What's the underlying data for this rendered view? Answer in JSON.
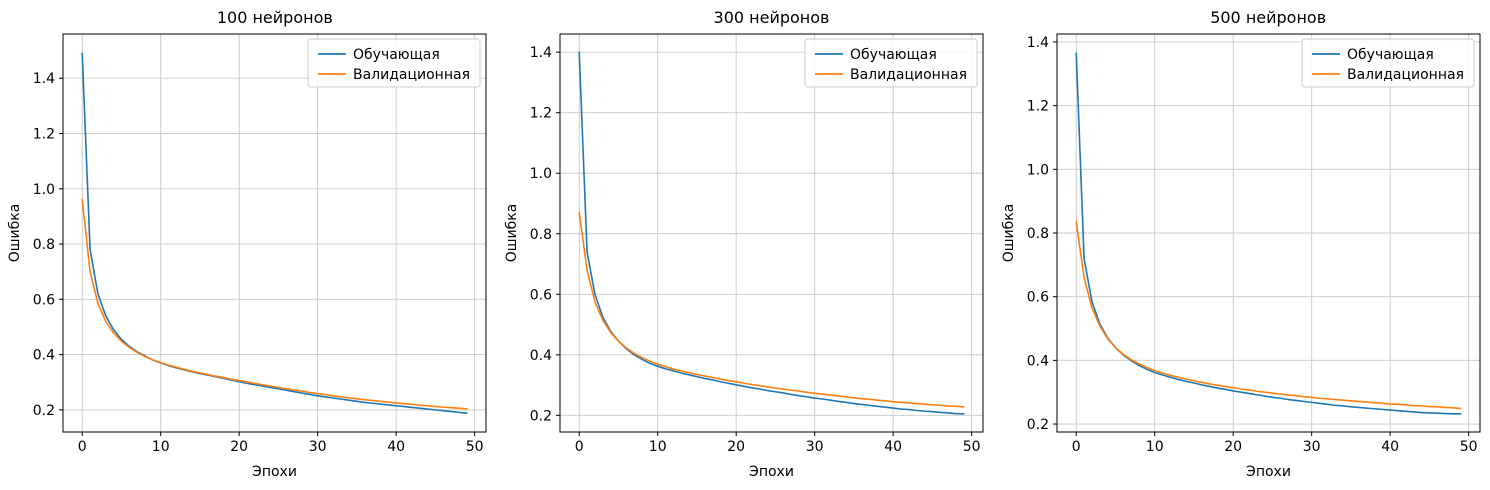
{
  "figure": {
    "background": "#ffffff",
    "grid_color": "#c9c9c9",
    "spine_color": "#000000",
    "legend_border_color": "#cccccc"
  },
  "chart_data": [
    {
      "type": "line",
      "title": "100 нейронов",
      "xlabel": "Эпохи",
      "ylabel": "Ошибка",
      "grid": true,
      "legend_loc": "upper right",
      "xlim": [
        -2.45,
        51.45
      ],
      "ylim": [
        0.12,
        1.56
      ],
      "xticks": [
        0,
        10,
        20,
        30,
        40,
        50
      ],
      "yticks": [
        0.2,
        0.4,
        0.6,
        0.8,
        1.0,
        1.2,
        1.4
      ],
      "x": [
        0,
        1,
        2,
        3,
        4,
        5,
        6,
        7,
        8,
        9,
        10,
        11,
        12,
        13,
        14,
        15,
        16,
        17,
        18,
        19,
        20,
        21,
        22,
        23,
        24,
        25,
        26,
        27,
        28,
        29,
        30,
        31,
        32,
        33,
        34,
        35,
        36,
        37,
        38,
        39,
        40,
        41,
        42,
        43,
        44,
        45,
        46,
        47,
        48,
        49
      ],
      "series": [
        {
          "name": "Обучающая",
          "color": "#1f77b4",
          "values": [
            1.49,
            0.78,
            0.62,
            0.54,
            0.49,
            0.455,
            0.43,
            0.41,
            0.395,
            0.38,
            0.37,
            0.36,
            0.352,
            0.345,
            0.338,
            0.332,
            0.326,
            0.32,
            0.314,
            0.308,
            0.302,
            0.296,
            0.291,
            0.286,
            0.281,
            0.276,
            0.271,
            0.266,
            0.261,
            0.256,
            0.251,
            0.247,
            0.243,
            0.239,
            0.235,
            0.231,
            0.227,
            0.224,
            0.221,
            0.218,
            0.215,
            0.212,
            0.209,
            0.206,
            0.203,
            0.2,
            0.197,
            0.194,
            0.191,
            0.188
          ]
        },
        {
          "name": "Валидационная",
          "color": "#ff7f0e",
          "values": [
            0.96,
            0.7,
            0.585,
            0.52,
            0.478,
            0.448,
            0.426,
            0.408,
            0.393,
            0.381,
            0.371,
            0.362,
            0.354,
            0.347,
            0.34,
            0.334,
            0.328,
            0.322,
            0.317,
            0.311,
            0.306,
            0.301,
            0.296,
            0.291,
            0.286,
            0.281,
            0.277,
            0.272,
            0.268,
            0.263,
            0.259,
            0.255,
            0.251,
            0.247,
            0.244,
            0.24,
            0.237,
            0.234,
            0.231,
            0.228,
            0.225,
            0.222,
            0.22,
            0.217,
            0.215,
            0.212,
            0.21,
            0.208,
            0.206,
            0.204
          ]
        }
      ]
    },
    {
      "type": "line",
      "title": "300 нейронов",
      "xlabel": "Эпохи",
      "ylabel": "Ошибка",
      "grid": true,
      "legend_loc": "upper right",
      "xlim": [
        -2.45,
        51.45
      ],
      "ylim": [
        0.145,
        1.46
      ],
      "xticks": [
        0,
        10,
        20,
        30,
        40,
        50
      ],
      "yticks": [
        0.2,
        0.4,
        0.6,
        0.8,
        1.0,
        1.2,
        1.4
      ],
      "x": [
        0,
        1,
        2,
        3,
        4,
        5,
        6,
        7,
        8,
        9,
        10,
        11,
        12,
        13,
        14,
        15,
        16,
        17,
        18,
        19,
        20,
        21,
        22,
        23,
        24,
        25,
        26,
        27,
        28,
        29,
        30,
        31,
        32,
        33,
        34,
        35,
        36,
        37,
        38,
        39,
        40,
        41,
        42,
        43,
        44,
        45,
        46,
        47,
        48,
        49
      ],
      "series": [
        {
          "name": "Обучающая",
          "color": "#1f77b4",
          "values": [
            1.4,
            0.74,
            0.6,
            0.525,
            0.478,
            0.445,
            0.42,
            0.4,
            0.385,
            0.372,
            0.362,
            0.354,
            0.347,
            0.34,
            0.334,
            0.328,
            0.322,
            0.317,
            0.311,
            0.306,
            0.301,
            0.296,
            0.291,
            0.287,
            0.282,
            0.278,
            0.274,
            0.269,
            0.265,
            0.261,
            0.257,
            0.254,
            0.25,
            0.246,
            0.243,
            0.239,
            0.236,
            0.233,
            0.23,
            0.227,
            0.224,
            0.221,
            0.219,
            0.216,
            0.214,
            0.212,
            0.21,
            0.208,
            0.206,
            0.205
          ]
        },
        {
          "name": "Валидационная",
          "color": "#ff7f0e",
          "values": [
            0.87,
            0.68,
            0.575,
            0.515,
            0.474,
            0.445,
            0.423,
            0.405,
            0.391,
            0.379,
            0.369,
            0.361,
            0.353,
            0.347,
            0.341,
            0.335,
            0.33,
            0.325,
            0.32,
            0.315,
            0.311,
            0.306,
            0.302,
            0.298,
            0.294,
            0.29,
            0.287,
            0.283,
            0.28,
            0.276,
            0.273,
            0.27,
            0.267,
            0.264,
            0.261,
            0.258,
            0.255,
            0.253,
            0.25,
            0.248,
            0.245,
            0.243,
            0.241,
            0.239,
            0.237,
            0.235,
            0.233,
            0.231,
            0.23,
            0.228
          ]
        }
      ]
    },
    {
      "type": "line",
      "title": "500 нейронов",
      "xlabel": "Эпохи",
      "ylabel": "Ошибка",
      "grid": true,
      "legend_loc": "upper right",
      "xlim": [
        -2.45,
        51.45
      ],
      "ylim": [
        0.175,
        1.425
      ],
      "xticks": [
        0,
        10,
        20,
        30,
        40,
        50
      ],
      "yticks": [
        0.2,
        0.4,
        0.6,
        0.8,
        1.0,
        1.2,
        1.4
      ],
      "x": [
        0,
        1,
        2,
        3,
        4,
        5,
        6,
        7,
        8,
        9,
        10,
        11,
        12,
        13,
        14,
        15,
        16,
        17,
        18,
        19,
        20,
        21,
        22,
        23,
        24,
        25,
        26,
        27,
        28,
        29,
        30,
        31,
        32,
        33,
        34,
        35,
        36,
        37,
        38,
        39,
        40,
        41,
        42,
        43,
        44,
        45,
        46,
        47,
        48,
        49
      ],
      "series": [
        {
          "name": "Обучающая",
          "color": "#1f77b4",
          "values": [
            1.365,
            0.72,
            0.585,
            0.515,
            0.47,
            0.44,
            0.417,
            0.399,
            0.384,
            0.372,
            0.362,
            0.354,
            0.347,
            0.34,
            0.334,
            0.329,
            0.323,
            0.318,
            0.313,
            0.309,
            0.304,
            0.3,
            0.296,
            0.292,
            0.288,
            0.284,
            0.281,
            0.277,
            0.274,
            0.271,
            0.268,
            0.265,
            0.262,
            0.259,
            0.257,
            0.254,
            0.252,
            0.25,
            0.248,
            0.246,
            0.244,
            0.242,
            0.24,
            0.238,
            0.236,
            0.235,
            0.234,
            0.233,
            0.232,
            0.232
          ]
        },
        {
          "name": "Валидационная",
          "color": "#ff7f0e",
          "values": [
            0.835,
            0.66,
            0.565,
            0.508,
            0.468,
            0.44,
            0.419,
            0.402,
            0.389,
            0.378,
            0.368,
            0.36,
            0.353,
            0.347,
            0.341,
            0.336,
            0.331,
            0.326,
            0.322,
            0.318,
            0.314,
            0.31,
            0.307,
            0.303,
            0.3,
            0.297,
            0.294,
            0.291,
            0.289,
            0.286,
            0.284,
            0.281,
            0.279,
            0.277,
            0.275,
            0.273,
            0.271,
            0.269,
            0.267,
            0.265,
            0.263,
            0.262,
            0.26,
            0.258,
            0.257,
            0.255,
            0.254,
            0.252,
            0.251,
            0.249
          ]
        }
      ]
    }
  ]
}
